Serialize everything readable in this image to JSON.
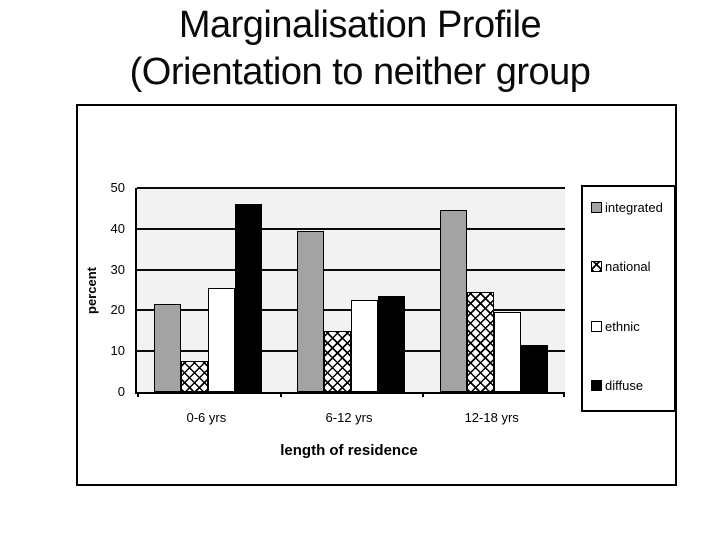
{
  "slide": {
    "title_line1": "Marginalisation Profile",
    "title_line2": "(Orientation to neither group"
  },
  "chart_data": {
    "type": "bar",
    "title": "Marginalisation Profile (Orientation to neither group",
    "categories": [
      "0-6 yrs",
      "6-12 yrs",
      "12-18 yrs"
    ],
    "series": [
      {
        "name": "integrated",
        "fill": "gray",
        "color": "#a3a3a3",
        "values": [
          21.5,
          39.5,
          44.5
        ]
      },
      {
        "name": "national",
        "fill": "hatch",
        "color": "#ffffff-crosshatch",
        "values": [
          7.5,
          15,
          24.5
        ]
      },
      {
        "name": "ethnic",
        "fill": "white",
        "color": "#ffffff",
        "values": [
          25.5,
          22.5,
          19.5
        ]
      },
      {
        "name": "diffuse",
        "fill": "black",
        "color": "#000000",
        "values": [
          46,
          23.5,
          11.5
        ]
      }
    ],
    "xlabel": "length of residence",
    "ylabel": "percent",
    "ylim": [
      0,
      50
    ],
    "yticks": [
      0,
      10,
      20,
      30,
      40,
      50
    ],
    "grid": true,
    "grid_color": "#0b0b0b",
    "plot_background": "#f2f2f2",
    "legend_position": "right",
    "legend_labels": [
      "integrated",
      "national",
      "ethnic",
      "diffuse"
    ]
  }
}
